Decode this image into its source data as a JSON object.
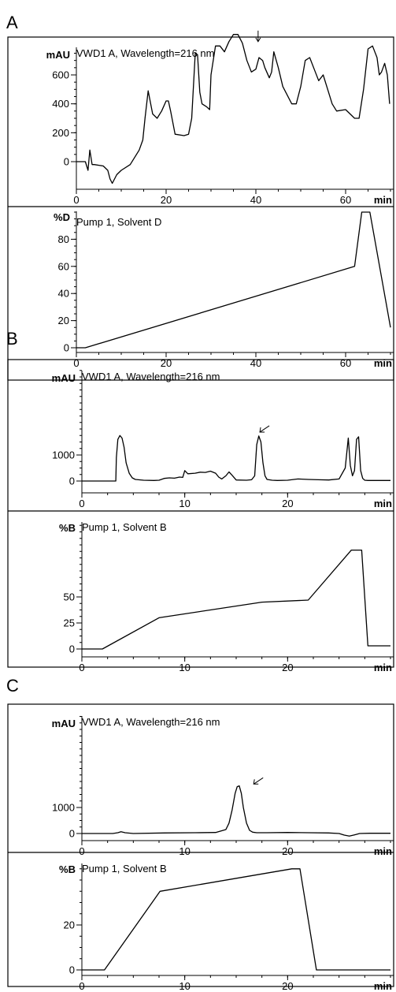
{
  "chart_data": [
    {
      "panel": "A",
      "type": "line",
      "signal": {
        "title": "VWD1 A, Wavelength=216 nm",
        "ylabel": "mAU",
        "xunit": "min",
        "xlim": [
          0,
          70
        ],
        "ylim": [
          -250,
          1000
        ],
        "xticks": [
          0,
          20,
          40,
          60
        ],
        "yticks": [
          0,
          200,
          400,
          600
        ],
        "arrow_at": [
          40.5,
          830
        ],
        "series": [
          {
            "x": [
              0,
              2,
              2.6,
              3,
              3.5,
              4,
              6,
              7,
              7.5,
              8,
              9,
              10,
              12,
              14,
              14.8,
              15.3,
              16,
              17,
              18,
              19,
              20,
              20.5,
              21,
              22,
              24,
              25,
              25.7,
              26.5,
              27,
              27.5,
              28,
              29,
              29.7,
              30,
              31,
              32,
              33,
              34,
              35,
              36,
              37,
              38,
              39,
              40,
              40.7,
              41.5,
              42,
              43,
              43.5,
              44,
              45,
              46,
              48,
              49,
              50,
              51,
              52,
              53,
              54,
              55,
              56,
              57,
              58,
              60,
              62,
              63,
              64,
              65,
              66,
              67,
              67.5,
              68,
              68.7,
              69.3,
              69.8
            ],
            "y": [
              0,
              0,
              -60,
              80,
              -20,
              -20,
              -30,
              -60,
              -120,
              -150,
              -90,
              -60,
              -20,
              80,
              150,
              300,
              490,
              330,
              300,
              350,
              420,
              420,
              350,
              190,
              180,
              190,
              300,
              750,
              740,
              480,
              400,
              380,
              360,
              600,
              800,
              800,
              760,
              830,
              880,
              880,
              820,
              700,
              620,
              640,
              720,
              700,
              650,
              580,
              620,
              760,
              650,
              520,
              400,
              400,
              520,
              700,
              720,
              640,
              560,
              600,
              500,
              400,
              350,
              360,
              300,
              300,
              500,
              780,
              800,
              720,
              600,
              620,
              680,
              600,
              400
            ]
          }
        ]
      },
      "gradient": {
        "title": "Pump 1, Solvent D",
        "ylabel": "%D",
        "xunit": "min",
        "xlim": [
          0,
          70
        ],
        "ylim": [
          0,
          100
        ],
        "xticks": [
          0,
          20,
          40,
          60
        ],
        "yticks": [
          0,
          20,
          40,
          60,
          80
        ],
        "series": [
          {
            "x": [
              0,
              2,
              62,
              63.6,
              65.4,
              70
            ],
            "y": [
              0,
              0,
              60,
              100,
              100,
              15
            ]
          }
        ]
      }
    },
    {
      "panel": "B",
      "type": "line",
      "signal": {
        "title": "VWD1 A, Wavelength=216 nm",
        "ylabel": "mAU",
        "xunit": "min",
        "xlim": [
          0,
          30
        ],
        "ylim": [
          -300,
          2000
        ],
        "xticks": [
          0,
          10,
          20
        ],
        "yticks": [
          0,
          1000
        ],
        "arrow_at": [
          17.3,
          1880
        ],
        "series": [
          {
            "x": [
              0,
              3.3,
              3.35,
              3.5,
              3.7,
              3.9,
              4.1,
              4.3,
              4.6,
              4.9,
              5.2,
              6,
              7,
              7.5,
              8,
              8.5,
              9,
              9.5,
              9.8,
              10,
              10.3,
              11,
              11.5,
              12,
              12.5,
              13,
              13.3,
              13.6,
              14,
              14.3,
              14.6,
              15,
              16,
              16.5,
              16.8,
              17,
              17.2,
              17.4,
              17.6,
              17.8,
              18,
              18.5,
              19,
              20,
              21,
              22,
              23,
              24,
              25,
              25.6,
              25.9,
              26.1,
              26.3,
              26.5,
              26.7,
              26.9,
              27.1,
              27.3,
              27.5,
              27.8,
              28,
              29,
              30
            ],
            "y": [
              0,
              0,
              900,
              1600,
              1750,
              1650,
              1300,
              700,
              300,
              120,
              60,
              30,
              20,
              30,
              100,
              120,
              110,
              150,
              140,
              400,
              280,
              300,
              340,
              330,
              380,
              300,
              150,
              80,
              200,
              350,
              220,
              40,
              30,
              50,
              200,
              1400,
              1730,
              1500,
              700,
              200,
              60,
              30,
              20,
              30,
              80,
              60,
              50,
              40,
              80,
              500,
              1650,
              600,
              200,
              400,
              1600,
              1700,
              400,
              100,
              30,
              20,
              20,
              20,
              20
            ]
          }
        ]
      },
      "gradient": {
        "title": "Pump 1, Solvent B",
        "ylabel": "%B",
        "xunit": "min",
        "xlim": [
          0,
          30
        ],
        "ylim": [
          0,
          100
        ],
        "xticks": [
          0,
          10,
          20
        ],
        "yticks": [
          0,
          25,
          50
        ],
        "series": [
          {
            "x": [
              0,
              2,
              7.5,
              17.5,
              22,
              26.2,
              27.2,
              27.8,
              30
            ],
            "y": [
              0,
              0,
              30,
              45,
              47,
              95,
              95,
              3,
              3
            ]
          }
        ]
      }
    },
    {
      "panel": "C",
      "type": "line",
      "signal": {
        "title": "VWD1 A, Wavelength=216 nm",
        "ylabel": "mAU",
        "xunit": "min",
        "xlim": [
          0,
          30
        ],
        "ylim": [
          -300,
          2000
        ],
        "xticks": [
          0,
          10,
          20
        ],
        "yticks": [
          0,
          1000
        ],
        "arrow_at": [
          16.7,
          1900
        ],
        "series": [
          {
            "x": [
              0,
              3,
              3.5,
              3.8,
              4.2,
              5,
              8,
              11,
              13,
              14,
              14.3,
              14.6,
              14.9,
              15.1,
              15.3,
              15.5,
              15.7,
              16,
              16.3,
              16.6,
              17,
              18,
              20,
              22,
              24,
              25,
              25.5,
              26,
              26.5,
              27,
              28,
              29,
              30
            ],
            "y": [
              0,
              0,
              30,
              70,
              30,
              0,
              20,
              30,
              40,
              150,
              400,
              900,
              1550,
              1800,
              1830,
              1550,
              1000,
              400,
              120,
              50,
              30,
              30,
              40,
              30,
              20,
              0,
              -60,
              -100,
              -50,
              0,
              10,
              10,
              10
            ]
          }
        ]
      },
      "gradient": {
        "title": "Pump 1, Solvent B",
        "ylabel": "%B",
        "xunit": "min",
        "xlim": [
          0,
          30
        ],
        "ylim": [
          0,
          60
        ],
        "xticks": [
          0,
          10,
          20
        ],
        "yticks": [
          0,
          20
        ],
        "series": [
          {
            "x": [
              0,
              2.2,
              7.6,
              20.4,
              21.2,
              22.8,
              30
            ],
            "y": [
              0,
              0,
              35,
              45,
              45,
              0,
              0
            ]
          }
        ]
      }
    }
  ]
}
